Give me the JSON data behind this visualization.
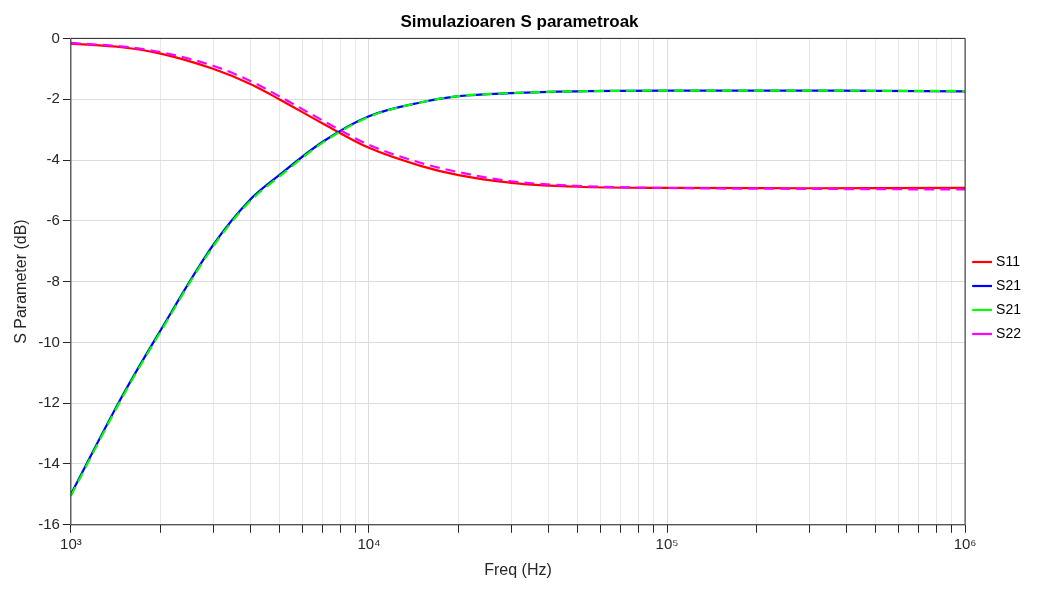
{
  "chart_data": {
    "type": "line",
    "title": "Simulazioaren S parametroak",
    "xlabel": "Freq (Hz)",
    "ylabel": "S Parameter (dB)",
    "x": [
      1000,
      1500,
      2000,
      3000,
      4000,
      5000,
      7000,
      10000,
      15000,
      20000,
      30000,
      50000,
      100000,
      300000,
      1000000
    ],
    "series": [
      {
        "name": "S11",
        "color": "#ff0000",
        "line_style": "solid",
        "values": [
          -0.17,
          -0.3,
          -0.5,
          -1.0,
          -1.5,
          -2.0,
          -2.8,
          -3.6,
          -4.2,
          -4.5,
          -4.75,
          -4.88,
          -4.92,
          -4.93,
          -4.92
        ]
      },
      {
        "name": "S21",
        "color": "#0000ff",
        "line_style": "solid",
        "values": [
          -15,
          -11.7,
          -9.6,
          -6.8,
          -5.3,
          -4.5,
          -3.4,
          -2.56,
          -2.1,
          -1.9,
          -1.8,
          -1.74,
          -1.72,
          -1.72,
          -1.74
        ]
      },
      {
        "name": "S21",
        "color": "#00ff00",
        "line_style": "dashed",
        "values": [
          -15.05,
          -11.75,
          -9.65,
          -6.85,
          -5.35,
          -4.55,
          -3.43,
          -2.58,
          -2.1,
          -1.9,
          -1.8,
          -1.74,
          -1.72,
          -1.72,
          -1.73
        ]
      },
      {
        "name": "S22",
        "color": "#ff00ff",
        "line_style": "dashed",
        "values": [
          -0.15,
          -0.27,
          -0.45,
          -0.9,
          -1.4,
          -1.9,
          -2.7,
          -3.5,
          -4.1,
          -4.4,
          -4.7,
          -4.85,
          -4.92,
          -4.95,
          -4.97
        ]
      }
    ],
    "log": "x",
    "xlim": [
      1000,
      1000000
    ],
    "ylim": [
      -16,
      0
    ],
    "xticks": [
      {
        "value": 1000,
        "label": "10³"
      },
      {
        "value": 2000,
        "label": null
      },
      {
        "value": 3000,
        "label": null
      },
      {
        "value": 4000,
        "label": null
      },
      {
        "value": 5000,
        "label": null
      },
      {
        "value": 6000,
        "label": null
      },
      {
        "value": 7000,
        "label": null
      },
      {
        "value": 8000,
        "label": null
      },
      {
        "value": 9000,
        "label": null
      },
      {
        "value": 10000,
        "label": "10⁴"
      },
      {
        "value": 20000,
        "label": null
      },
      {
        "value": 30000,
        "label": null
      },
      {
        "value": 40000,
        "label": null
      },
      {
        "value": 50000,
        "label": null
      },
      {
        "value": 60000,
        "label": null
      },
      {
        "value": 70000,
        "label": null
      },
      {
        "value": 80000,
        "label": null
      },
      {
        "value": 90000,
        "label": null
      },
      {
        "value": 100000,
        "label": "10⁵"
      },
      {
        "value": 200000,
        "label": null
      },
      {
        "value": 300000,
        "label": null
      },
      {
        "value": 400000,
        "label": null
      },
      {
        "value": 500000,
        "label": null
      },
      {
        "value": 600000,
        "label": null
      },
      {
        "value": 700000,
        "label": null
      },
      {
        "value": 800000,
        "label": null
      },
      {
        "value": 900000,
        "label": null
      },
      {
        "value": 1000000,
        "label": "10⁶"
      }
    ],
    "yticks": [
      -16,
      -14,
      -12,
      -10,
      -8,
      -6,
      -4,
      -2,
      0
    ],
    "grid": true,
    "legend": "right",
    "marker": "none"
  }
}
